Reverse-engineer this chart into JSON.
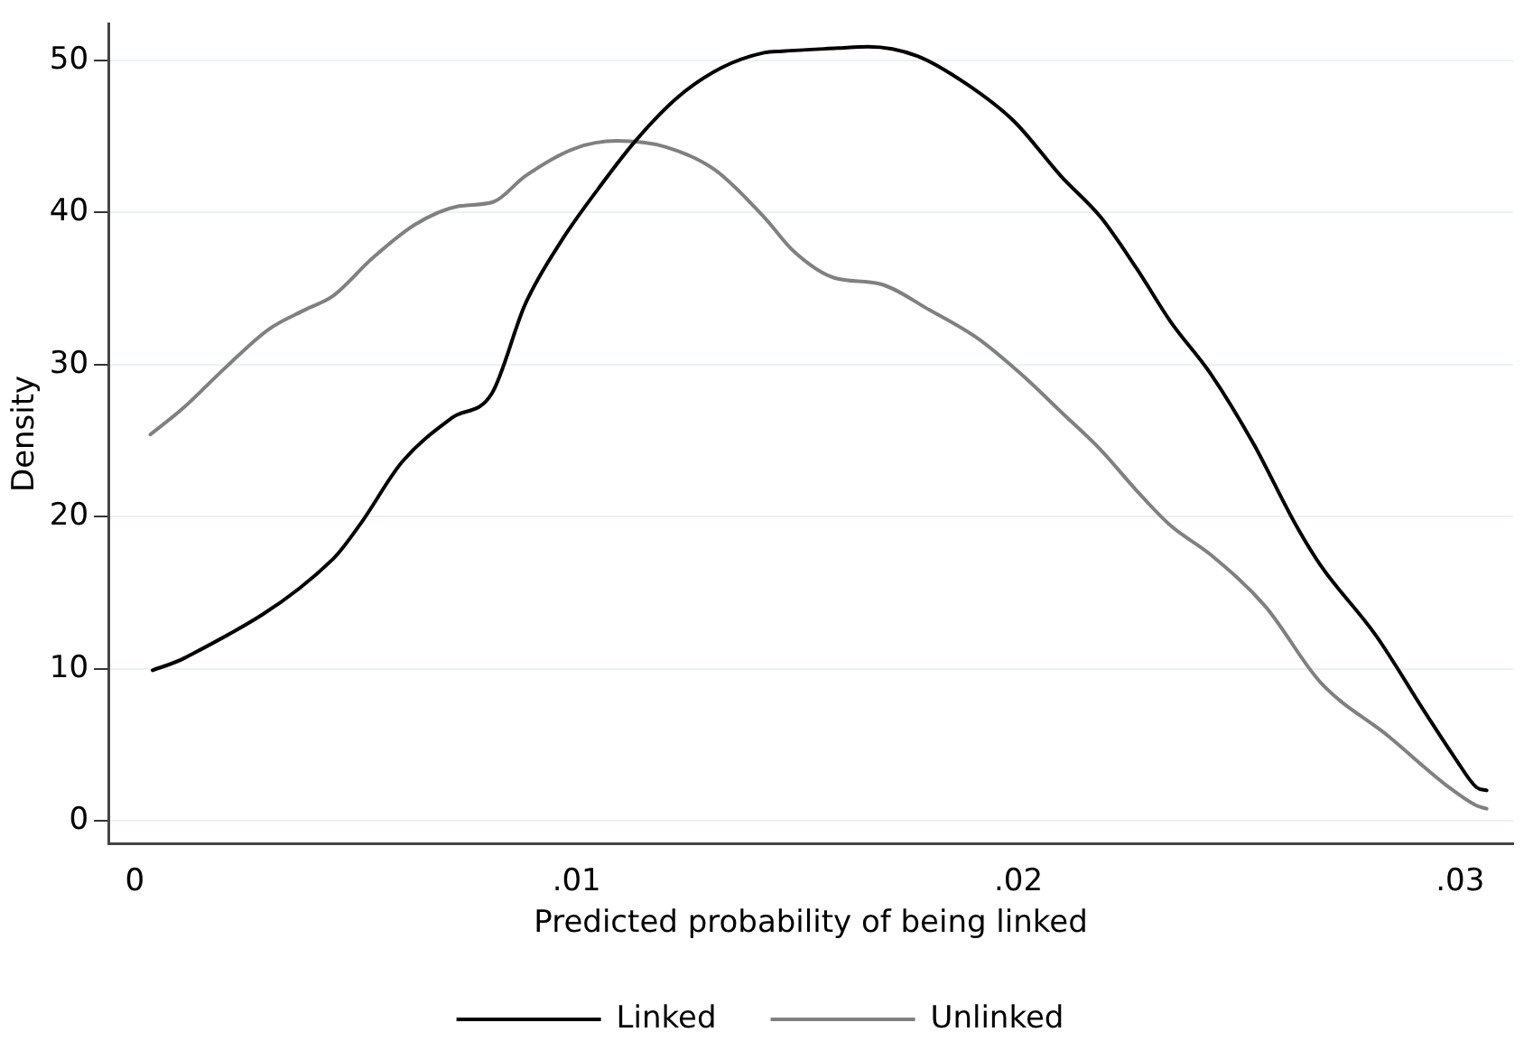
{
  "chart_data": {
    "type": "line",
    "xlabel": "Predicted probability of being linked",
    "ylabel": "Density",
    "xlim": [
      -0.0006,
      0.0312
    ],
    "ylim": [
      -1.5,
      52.4
    ],
    "xticks": [
      0,
      {
        "value": 0.01,
        "label": ".01"
      },
      {
        "value": 0.02,
        "label": ".02"
      },
      {
        "value": 0.03,
        "label": ".03"
      }
    ],
    "yticks": [
      0,
      10,
      20,
      30,
      40,
      50
    ],
    "grid": "y",
    "legend": "bottom",
    "marker": "none",
    "line_style": "solid",
    "series": [
      {
        "name": "Linked",
        "color": "#000000",
        "x": [
          0.0004,
          0.00112,
          0.00448,
          0.0051,
          0.00605,
          0.00718,
          0.00808,
          0.00884,
          0.00967,
          0.0105,
          0.01133,
          0.0123,
          0.01327,
          0.01424,
          0.01465,
          0.0159,
          0.0166,
          0.0177,
          0.0188,
          0.0199,
          0.02096,
          0.02186,
          0.02268,
          0.02345,
          0.02435,
          0.02532,
          0.02629,
          0.02684,
          0.02809,
          0.02919,
          0.02989,
          0.03037,
          0.0306
        ],
        "values": [
          9.9,
          10.7,
          17.2,
          19.5,
          23.6,
          26.5,
          28.1,
          34.0,
          38.2,
          41.6,
          44.7,
          47.6,
          49.5,
          50.5,
          50.6,
          50.8,
          50.9,
          50.3,
          48.5,
          46.0,
          42.4,
          39.7,
          36.3,
          32.8,
          29.4,
          24.8,
          19.4,
          16.8,
          12.2,
          7.2,
          4.1,
          2.2,
          2.0
        ]
      },
      {
        "name": "Unlinked",
        "color": "#808080",
        "x": [
          0.00035,
          0.00108,
          0.00205,
          0.00302,
          0.00385,
          0.00448,
          0.00538,
          0.00634,
          0.00731,
          0.00812,
          0.00884,
          0.00995,
          0.01091,
          0.01202,
          0.01313,
          0.01424,
          0.01493,
          0.01583,
          0.01687,
          0.01798,
          0.01909,
          0.02005,
          0.02096,
          0.02186,
          0.02268,
          0.02345,
          0.02435,
          0.02559,
          0.02684,
          0.02836,
          0.02975,
          0.03037,
          0.0306
        ],
        "values": [
          25.4,
          27.1,
          29.8,
          32.3,
          33.6,
          34.5,
          37.0,
          39.2,
          40.4,
          40.7,
          42.4,
          44.2,
          44.7,
          44.3,
          42.8,
          39.7,
          37.4,
          35.7,
          35.3,
          33.6,
          31.7,
          29.4,
          26.9,
          24.4,
          21.7,
          19.4,
          17.5,
          14.1,
          9.1,
          5.6,
          2.2,
          1.0,
          0.8
        ]
      }
    ]
  }
}
